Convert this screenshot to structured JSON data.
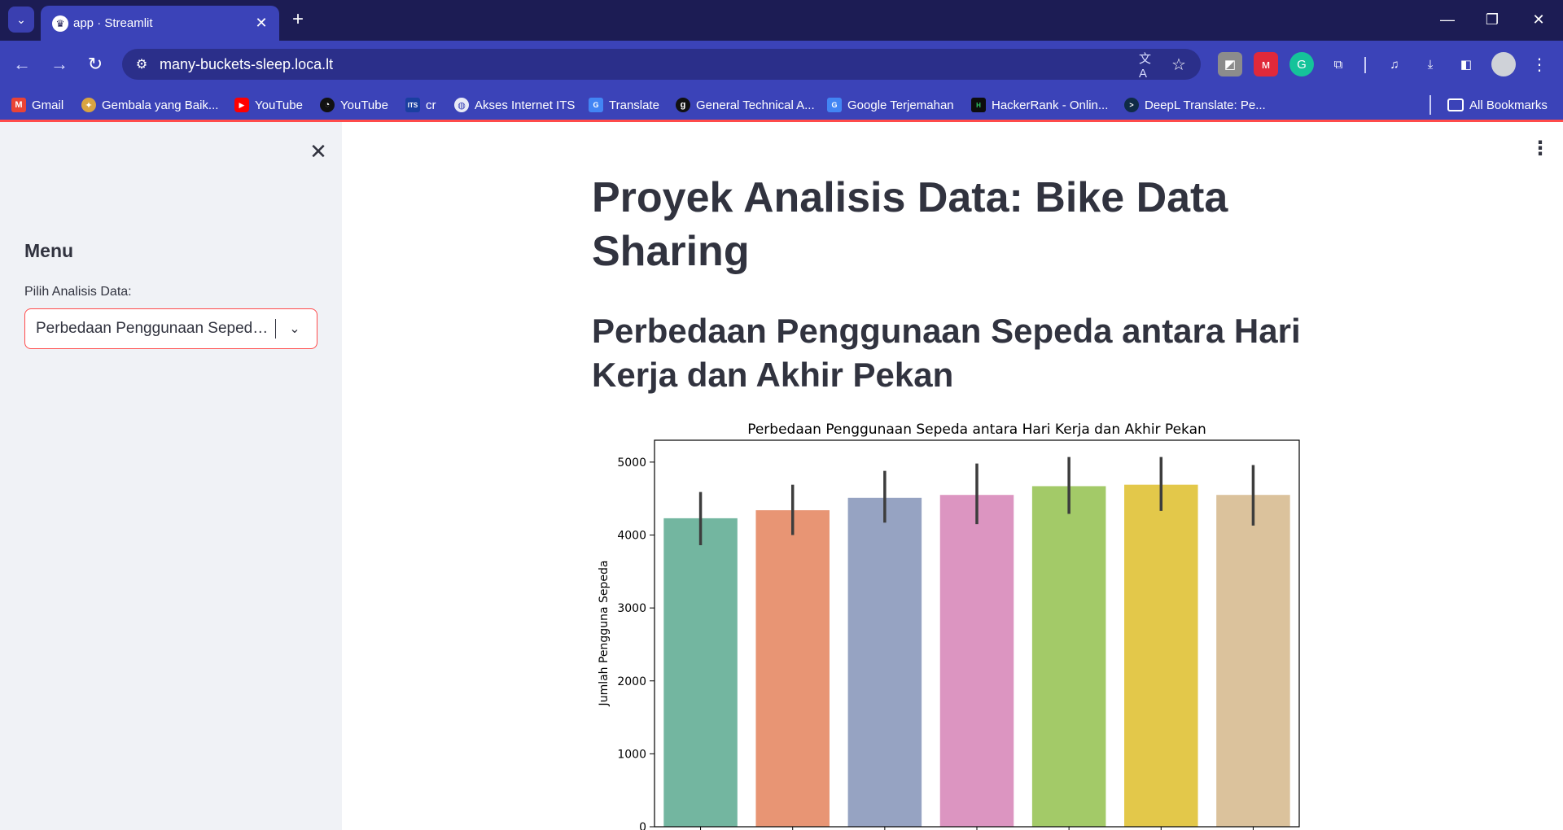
{
  "browser": {
    "tab_title": "app · Streamlit",
    "url": "many-buckets-sleep.loca.lt",
    "bookmarks": [
      {
        "label": "Gmail",
        "icon": "gmail-icon"
      },
      {
        "label": "Gembala yang Baik...",
        "icon": "gembala-icon"
      },
      {
        "label": "YouTube",
        "icon": "youtube-icon"
      },
      {
        "label": "YouTube",
        "icon": "youtube-alt-icon"
      },
      {
        "label": "cr",
        "icon": "its-icon"
      },
      {
        "label": "Akses Internet ITS",
        "icon": "globe-icon"
      },
      {
        "label": "Translate",
        "icon": "translate-icon"
      },
      {
        "label": "General Technical A...",
        "icon": "g-icon"
      },
      {
        "label": "Google Terjemahan",
        "icon": "google-translate-icon"
      },
      {
        "label": "HackerRank - Onlin...",
        "icon": "hackerrank-icon"
      },
      {
        "label": "DeepL Translate: Pe...",
        "icon": "deepl-icon"
      }
    ],
    "all_bookmarks": "All Bookmarks"
  },
  "sidebar": {
    "menu_heading": "Menu",
    "select_label": "Pilih Analisis Data:",
    "select_value": "Perbedaan Penggunaan Sepeda antara Hari Kerja dan Akhir Pekan"
  },
  "main": {
    "title": "Proyek Analisis Data: Bike Data Sharing",
    "section_heading": "Perbedaan Penggunaan Sepeda antara Hari Kerja dan Akhir Pekan"
  },
  "colors": {
    "accent": "#ff4b4b",
    "chrome_dark": "#1c1c54",
    "chrome": "#3b43b8",
    "sidebar_bg": "#f0f2f6"
  },
  "chart_data": {
    "type": "bar",
    "title": "Perbedaan Penggunaan Sepeda antara Hari Kerja dan Akhir Pekan",
    "ylabel": "Jumlah Pengguna Sepeda",
    "xlabel": "",
    "ylim": [
      0,
      5300
    ],
    "yticks": [
      0,
      1000,
      2000,
      3000,
      4000,
      5000
    ],
    "values": [
      4230,
      4340,
      4510,
      4550,
      4670,
      4690,
      4550
    ],
    "error_low": [
      3860,
      4000,
      4170,
      4150,
      4290,
      4330,
      4130
    ],
    "error_high": [
      4590,
      4690,
      4880,
      4980,
      5070,
      5070,
      4960
    ],
    "colors": [
      "#73b6a0",
      "#e89574",
      "#96a3c2",
      "#dc95c1",
      "#a3ca68",
      "#e3c84a",
      "#dbc29c"
    ]
  }
}
